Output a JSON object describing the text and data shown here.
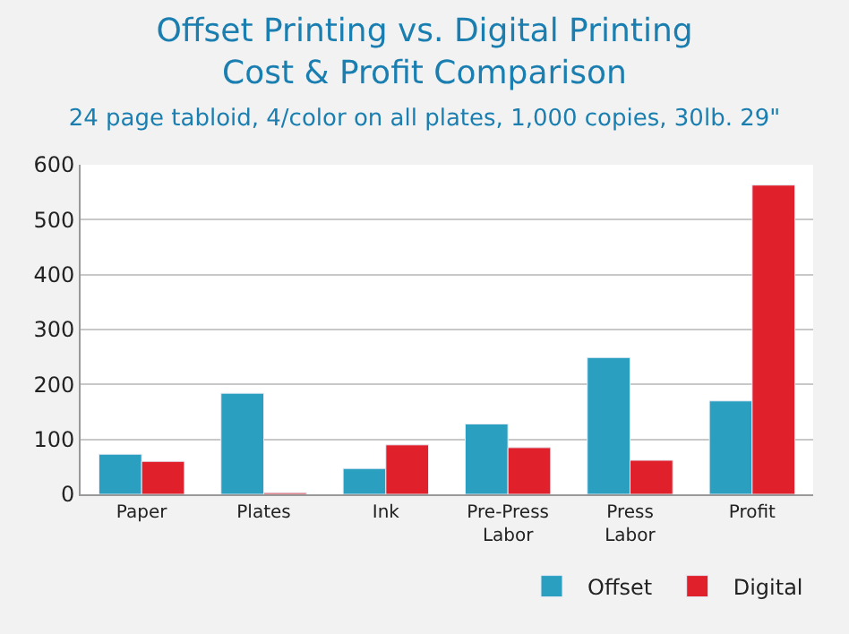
{
  "chart_data": {
    "type": "bar",
    "title": "Offset Printing vs. Digital Printing\nCost & Profit Comparison",
    "subtitle": "24 page tabloid, 4/color on all plates, 1,000 copies, 30lb. 29\"",
    "categories": [
      "Paper",
      "Plates",
      "Ink",
      "Pre-Press\nLabor",
      "Press\nLabor",
      "Profit"
    ],
    "series": [
      {
        "name": "Offset",
        "color": "#2a9fc0",
        "values": [
          73,
          184,
          47,
          128,
          249,
          170
        ]
      },
      {
        "name": "Digital",
        "color": "#e0202a",
        "values": [
          60,
          3,
          90,
          85,
          62,
          563
        ]
      }
    ],
    "ylim": [
      0,
      600
    ],
    "yticks": [
      0,
      100,
      200,
      300,
      400,
      500,
      600
    ],
    "grid": "y",
    "legend": "bottom right"
  }
}
